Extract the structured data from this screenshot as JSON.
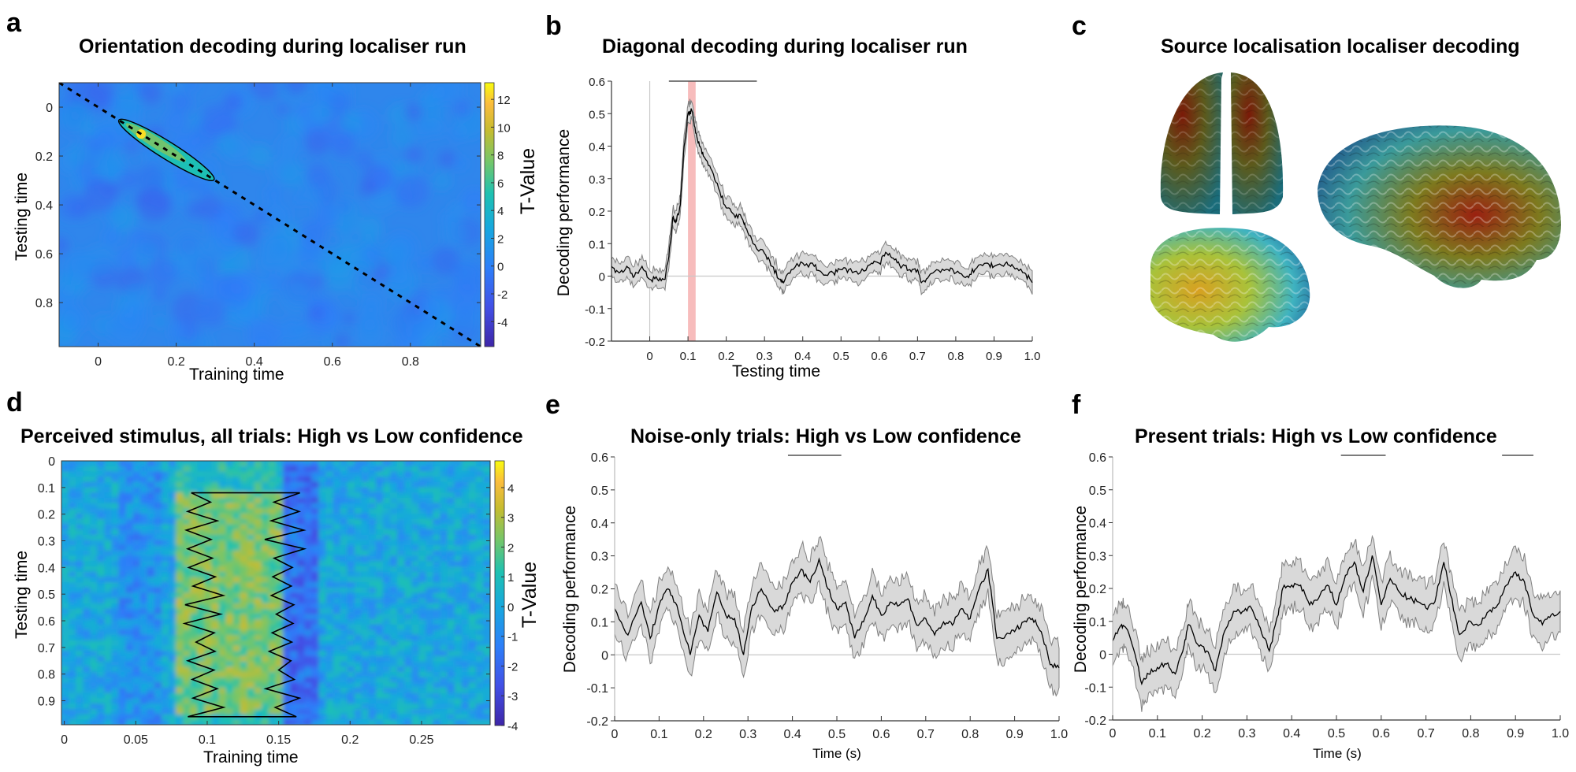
{
  "panel_labels": [
    "a",
    "b",
    "c",
    "d",
    "e",
    "f"
  ],
  "titles": {
    "a": "Orientation decoding during localiser run",
    "b": "Diagonal decoding during localiser run",
    "c": "Source localisation localiser decoding",
    "d": "Perceived stimulus, all trials: High vs Low confidence",
    "e": "Noise-only trials: High vs Low confidence",
    "f": "Present trials: High vs Low confidence"
  },
  "colors": {
    "line": "#000000",
    "ci_fill": "#d9d9d9",
    "ci_edge": "#808080",
    "highlight": "#f4a6a6",
    "zero_line": "#c8c8c8",
    "sig_bar": "#505050"
  },
  "chart_data": [
    {
      "id": "a",
      "type": "heatmap",
      "title": "Orientation decoding during localiser run",
      "xlabel": "Training time",
      "ylabel": "Testing time",
      "xlim": [
        -0.1,
        0.98
      ],
      "ylim": [
        -0.1,
        0.98
      ],
      "xticks": [
        "0",
        "0.2",
        "0.4",
        "0.6",
        "0.8"
      ],
      "xtick_values": [
        0,
        0.2,
        0.4,
        0.6,
        0.8
      ],
      "yticks": [
        "0",
        "0.2",
        "0.4",
        "0.6",
        "0.8"
      ],
      "ytick_values": [
        0,
        0.2,
        0.4,
        0.6,
        0.8
      ],
      "colorbar": {
        "label": "T-Value",
        "range": [
          -5.8,
          13.2
        ],
        "ticks": [
          "12",
          "10",
          "8",
          "6",
          "4",
          "2",
          "0",
          "-2",
          "-4"
        ],
        "tick_values": [
          12,
          10,
          8,
          6,
          4,
          2,
          0,
          -2,
          -4
        ]
      },
      "colormap": "parula",
      "diagonal": "dashed",
      "significant_cluster": {
        "train_range": [
          0.06,
          0.29
        ],
        "test_range": [
          0.06,
          0.29
        ],
        "peak_t": 12.5,
        "peak_at": [
          0.11,
          0.11
        ]
      },
      "background_t_range": [
        -2,
        2
      ]
    },
    {
      "id": "b",
      "type": "line",
      "title": "Diagonal decoding during localiser run",
      "xlabel": "Testing time",
      "ylabel": "Decoding performance",
      "xlim": [
        -0.1,
        1.0
      ],
      "ylim": [
        -0.2,
        0.6
      ],
      "xticks": [
        "0",
        "0.1",
        "0.2",
        "0.3",
        "0.4",
        "0.5",
        "0.6",
        "0.7",
        "0.8",
        "0.9",
        "1.0"
      ],
      "xtick_values": [
        0,
        0.1,
        0.2,
        0.3,
        0.4,
        0.5,
        0.6,
        0.7,
        0.8,
        0.9,
        1.0
      ],
      "yticks": [
        "0.6",
        "0.5",
        "0.4",
        "0.3",
        "0.2",
        "0.1",
        "0",
        "-0.1",
        "-0.2"
      ],
      "ytick_values": [
        0.6,
        0.5,
        0.4,
        0.3,
        0.2,
        0.1,
        0,
        -0.1,
        -0.2
      ],
      "highlight_window": [
        0.1,
        0.12
      ],
      "significance_bars": [
        [
          0.05,
          0.28
        ]
      ],
      "vline_at": 0,
      "x": [
        -0.1,
        -0.08,
        -0.06,
        -0.04,
        -0.02,
        0.0,
        0.02,
        0.04,
        0.05,
        0.06,
        0.07,
        0.08,
        0.09,
        0.1,
        0.11,
        0.12,
        0.13,
        0.14,
        0.16,
        0.18,
        0.2,
        0.22,
        0.24,
        0.25,
        0.27,
        0.3,
        0.32,
        0.34,
        0.35,
        0.37,
        0.4,
        0.43,
        0.45,
        0.48,
        0.5,
        0.52,
        0.55,
        0.58,
        0.6,
        0.62,
        0.64,
        0.66,
        0.68,
        0.7,
        0.71,
        0.73,
        0.75,
        0.78,
        0.8,
        0.83,
        0.85,
        0.88,
        0.9,
        0.93,
        0.95,
        0.98,
        1.0
      ],
      "y": [
        0.03,
        0.01,
        0.03,
        0.0,
        0.03,
        -0.01,
        -0.01,
        -0.01,
        0.06,
        0.18,
        0.17,
        0.22,
        0.4,
        0.5,
        0.51,
        0.44,
        0.4,
        0.37,
        0.33,
        0.27,
        0.21,
        0.19,
        0.18,
        0.15,
        0.1,
        0.07,
        0.03,
        -0.01,
        -0.02,
        0.02,
        0.04,
        0.03,
        0.01,
        0.01,
        0.02,
        0.02,
        0.01,
        0.04,
        0.04,
        0.07,
        0.05,
        0.03,
        0.02,
        0.02,
        -0.02,
        0.0,
        0.02,
        0.02,
        0.01,
        0.0,
        0.02,
        0.04,
        0.03,
        0.04,
        0.03,
        0.01,
        -0.02
      ],
      "ci_half_width": 0.03
    },
    {
      "id": "d",
      "type": "heatmap",
      "title": "Perceived stimulus, all trials: High vs Low confidence",
      "xlabel": "Training time",
      "ylabel": "Testing time",
      "xlim": [
        -0.002,
        0.298
      ],
      "ylim": [
        0,
        0.99
      ],
      "xticks": [
        "0",
        "0.05",
        "0.1",
        "0.15",
        "0.2",
        "0.25"
      ],
      "xtick_values": [
        0,
        0.05,
        0.1,
        0.15,
        0.2,
        0.25
      ],
      "yticks": [
        "0",
        "0.1",
        "0.2",
        "0.3",
        "0.4",
        "0.5",
        "0.6",
        "0.7",
        "0.8",
        "0.9"
      ],
      "ytick_values": [
        0,
        0.1,
        0.2,
        0.3,
        0.4,
        0.5,
        0.6,
        0.7,
        0.8,
        0.9
      ],
      "colorbar": {
        "label": "T-Value",
        "range": [
          -4,
          4.9
        ],
        "ticks": [
          "4",
          "3",
          "2",
          "1",
          "0",
          "-1",
          "-2",
          "-3",
          "-4"
        ],
        "tick_values": [
          4,
          3,
          2,
          1,
          0,
          -1,
          -2,
          -3,
          -4
        ]
      },
      "colormap": "parula",
      "significant_cluster": {
        "train_range": [
          0.085,
          0.155
        ],
        "test_range": [
          0.12,
          0.96
        ]
      },
      "negative_band": {
        "train_range": [
          0.155,
          0.18
        ]
      }
    },
    {
      "id": "e",
      "type": "line",
      "title": "Noise-only trials: High vs Low confidence",
      "xlabel": "Time (s)",
      "ylabel": "Decoding performance",
      "xlim": [
        0,
        1.0
      ],
      "ylim": [
        -0.2,
        0.6
      ],
      "xticks": [
        "0",
        "0.1",
        "0.2",
        "0.3",
        "0.4",
        "0.5",
        "0.6",
        "0.7",
        "0.8",
        "0.9",
        "1.0"
      ],
      "xtick_values": [
        0,
        0.1,
        0.2,
        0.3,
        0.4,
        0.5,
        0.6,
        0.7,
        0.8,
        0.9,
        1.0
      ],
      "yticks": [
        "0.6",
        "0.5",
        "0.4",
        "0.3",
        "0.2",
        "0.1",
        "0",
        "-0.1",
        "-0.2"
      ],
      "ytick_values": [
        0.6,
        0.5,
        0.4,
        0.3,
        0.2,
        0.1,
        0,
        -0.1,
        -0.2
      ],
      "significance_bars": [
        [
          0.39,
          0.51
        ]
      ],
      "x": [
        0.0,
        0.03,
        0.06,
        0.08,
        0.1,
        0.12,
        0.14,
        0.17,
        0.19,
        0.21,
        0.23,
        0.25,
        0.27,
        0.29,
        0.31,
        0.33,
        0.36,
        0.38,
        0.4,
        0.42,
        0.44,
        0.46,
        0.48,
        0.5,
        0.52,
        0.54,
        0.56,
        0.58,
        0.6,
        0.62,
        0.64,
        0.66,
        0.68,
        0.7,
        0.72,
        0.74,
        0.76,
        0.78,
        0.8,
        0.82,
        0.84,
        0.86,
        0.88,
        0.9,
        0.92,
        0.94,
        0.96,
        0.98,
        1.0
      ],
      "y": [
        0.14,
        0.06,
        0.16,
        0.05,
        0.15,
        0.2,
        0.15,
        0.0,
        0.12,
        0.07,
        0.19,
        0.12,
        0.11,
        0.0,
        0.15,
        0.2,
        0.13,
        0.15,
        0.22,
        0.26,
        0.22,
        0.29,
        0.2,
        0.14,
        0.16,
        0.05,
        0.1,
        0.18,
        0.12,
        0.16,
        0.15,
        0.17,
        0.09,
        0.11,
        0.06,
        0.1,
        0.09,
        0.14,
        0.11,
        0.2,
        0.26,
        0.05,
        0.06,
        0.07,
        0.1,
        0.11,
        0.07,
        -0.03,
        -0.04
      ],
      "ci_half_width": 0.07
    },
    {
      "id": "f",
      "type": "line",
      "title": "Present trials: High vs Low confidence",
      "xlabel": "Time (s)",
      "ylabel": "Decoding performance",
      "xlim": [
        0,
        1.0
      ],
      "ylim": [
        -0.2,
        0.6
      ],
      "xticks": [
        "0",
        "0.1",
        "0.2",
        "0.3",
        "0.4",
        "0.5",
        "0.6",
        "0.7",
        "0.8",
        "0.9",
        "1.0"
      ],
      "xtick_values": [
        0,
        0.1,
        0.2,
        0.3,
        0.4,
        0.5,
        0.6,
        0.7,
        0.8,
        0.9,
        1.0
      ],
      "yticks": [
        "0.6",
        "0.5",
        "0.4",
        "0.3",
        "0.2",
        "0.1",
        "0",
        "-0.1",
        "-0.2"
      ],
      "ytick_values": [
        0.6,
        0.5,
        0.4,
        0.3,
        0.2,
        0.1,
        0,
        -0.1,
        -0.2
      ],
      "significance_bars": [
        [
          0.51,
          0.61
        ],
        [
          0.87,
          0.94
        ]
      ],
      "x": [
        0.0,
        0.02,
        0.03,
        0.05,
        0.065,
        0.08,
        0.1,
        0.12,
        0.14,
        0.16,
        0.17,
        0.19,
        0.21,
        0.23,
        0.25,
        0.27,
        0.29,
        0.31,
        0.33,
        0.35,
        0.37,
        0.38,
        0.4,
        0.42,
        0.44,
        0.46,
        0.48,
        0.5,
        0.52,
        0.54,
        0.56,
        0.58,
        0.6,
        0.62,
        0.64,
        0.66,
        0.68,
        0.7,
        0.72,
        0.74,
        0.755,
        0.775,
        0.8,
        0.82,
        0.84,
        0.86,
        0.88,
        0.9,
        0.92,
        0.94,
        0.96,
        0.98,
        1.0
      ],
      "y": [
        0.04,
        0.09,
        0.08,
        0.0,
        -0.09,
        -0.06,
        -0.04,
        -0.03,
        -0.06,
        0.03,
        0.09,
        0.03,
        0.01,
        -0.05,
        0.07,
        0.13,
        0.13,
        0.14,
        0.08,
        0.01,
        0.12,
        0.2,
        0.21,
        0.21,
        0.15,
        0.17,
        0.21,
        0.15,
        0.24,
        0.28,
        0.19,
        0.3,
        0.15,
        0.23,
        0.19,
        0.17,
        0.16,
        0.14,
        0.16,
        0.28,
        0.18,
        0.06,
        0.1,
        0.09,
        0.13,
        0.15,
        0.21,
        0.25,
        0.22,
        0.12,
        0.09,
        0.12,
        0.13
      ],
      "ci_half_width": 0.07
    }
  ],
  "panel_c": {
    "views": [
      "top-view-brain",
      "lateral-view-brain-small",
      "lateral-view-brain-large"
    ]
  }
}
